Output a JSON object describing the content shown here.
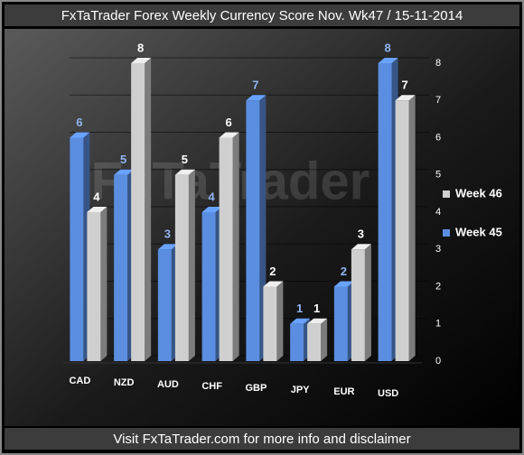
{
  "chart_data": {
    "type": "bar",
    "title": "FxTaTrader Forex Weekly Currency Score Nov. Wk47 / 15-11-2014",
    "footer": "Visit FxTaTrader.com for more info and disclaimer",
    "watermark": "FxTaTrader",
    "categories": [
      "CAD",
      "NZD",
      "AUD",
      "CHF",
      "GBP",
      "JPY",
      "EUR",
      "USD"
    ],
    "series": [
      {
        "name": "Week 45",
        "color": "#5b8ee0",
        "label_color": "#8fb4f0",
        "values": [
          6,
          5,
          3,
          4,
          7,
          1,
          2,
          8
        ]
      },
      {
        "name": "Week 46",
        "color": "#cfcfcf",
        "label_color": "#ffffff",
        "values": [
          4,
          8,
          5,
          6,
          2,
          1,
          3,
          7
        ]
      }
    ],
    "ylim": [
      0,
      8
    ],
    "yticks": [
      0,
      1,
      2,
      3,
      4,
      5,
      6,
      7,
      8
    ],
    "grid": true,
    "legend": "right"
  }
}
